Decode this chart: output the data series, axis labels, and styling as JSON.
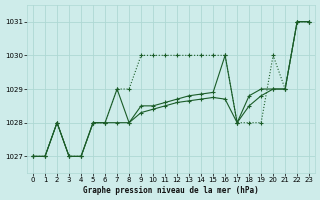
{
  "bg_color": "#ceecea",
  "grid_color": "#aed8d4",
  "line_color": "#1a5c28",
  "title": "Graphe pression niveau de la mer (hPa)",
  "xlim": [
    -0.5,
    23.5
  ],
  "ylim": [
    1026.5,
    1031.5
  ],
  "yticks": [
    1027,
    1028,
    1029,
    1030,
    1031
  ],
  "xticks": [
    0,
    1,
    2,
    3,
    4,
    5,
    6,
    7,
    8,
    9,
    10,
    11,
    12,
    13,
    14,
    15,
    16,
    17,
    18,
    19,
    20,
    21,
    22,
    23
  ],
  "line1_x": [
    0,
    1,
    2,
    3,
    4,
    5,
    6,
    7,
    8,
    9,
    10,
    11,
    12,
    13,
    14,
    15,
    16,
    17,
    18,
    19,
    20,
    21,
    22,
    23
  ],
  "line1_y": [
    1027,
    1027,
    1028,
    1027,
    1027,
    1028,
    1028,
    1029,
    1029,
    1030,
    1030,
    1030,
    1030,
    1030,
    1030,
    1030,
    1030,
    1028,
    1028,
    1028,
    1030,
    1029,
    1031,
    1031
  ],
  "line2_x": [
    0,
    1,
    2,
    3,
    4,
    5,
    6,
    7,
    8,
    9,
    10,
    11,
    12,
    13,
    14,
    15,
    16,
    17,
    18,
    19,
    20,
    21,
    22,
    23
  ],
  "line2_y": [
    1027,
    1027,
    1028,
    1027,
    1027,
    1028,
    1028,
    1029,
    1028,
    1028.5,
    1028.5,
    1028.6,
    1028.7,
    1028.8,
    1028.85,
    1028.9,
    1030,
    1028,
    1028.8,
    1029,
    1029,
    1029,
    1031,
    1031
  ],
  "line3_x": [
    0,
    1,
    2,
    3,
    4,
    5,
    6,
    7,
    8,
    9,
    10,
    11,
    12,
    13,
    14,
    15,
    16,
    17,
    18,
    19,
    20,
    21,
    22,
    23
  ],
  "line3_y": [
    1027,
    1027,
    1028,
    1027,
    1027,
    1028,
    1028,
    1028,
    1028,
    1028.3,
    1028.4,
    1028.5,
    1028.6,
    1028.65,
    1028.7,
    1028.75,
    1028.7,
    1028,
    1028.5,
    1028.8,
    1029,
    1029,
    1031,
    1031
  ]
}
